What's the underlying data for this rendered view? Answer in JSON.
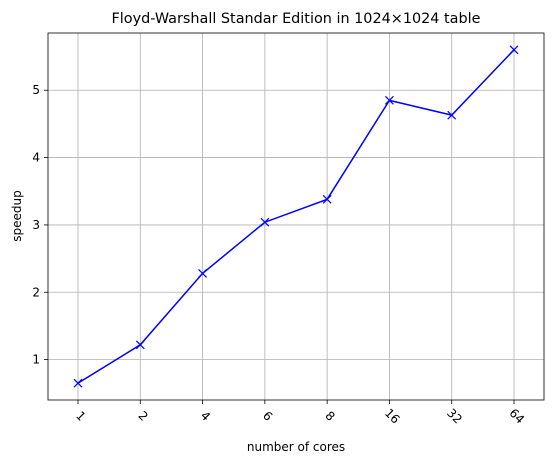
{
  "chart_data": {
    "type": "line",
    "title": "Floyd-Warshall Standar Edition in 1024×1024 table",
    "xlabel": "number of cores",
    "ylabel": "speedup",
    "categories": [
      "1",
      "2",
      "4",
      "6",
      "8",
      "16",
      "32",
      "64"
    ],
    "series": [
      {
        "values": [
          0.65,
          1.22,
          2.28,
          3.04,
          3.38,
          4.85,
          4.63,
          5.6
        ],
        "color": "#0000ff",
        "marker": "x"
      }
    ],
    "yticks": [
      1,
      2,
      3,
      4,
      5
    ],
    "ylim": [
      0.4,
      5.85
    ],
    "grid": true,
    "xtick_rotation": 45
  }
}
